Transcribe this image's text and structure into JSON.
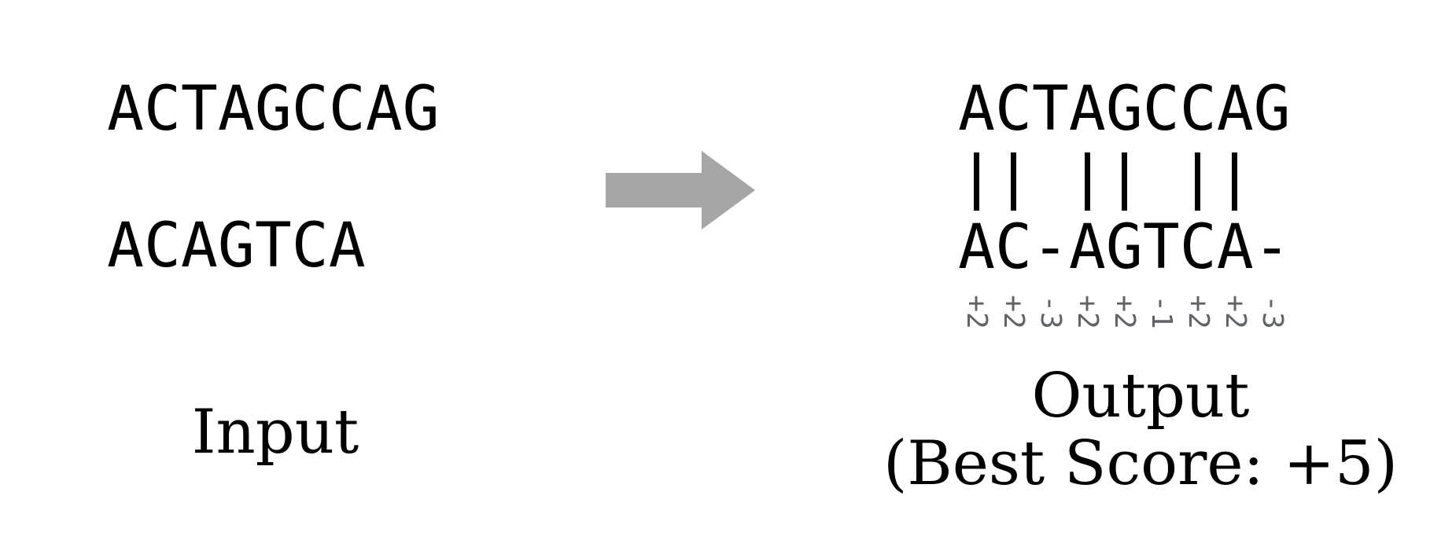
{
  "input": {
    "sequence_1": "ACTAGCCAG",
    "sequence_2": "ACAGTCA",
    "caption": "Input"
  },
  "arrow": {
    "icon": "right-arrow-icon",
    "color": "#a6a6a6"
  },
  "output": {
    "aligned_top": "ACTAGCCAG",
    "match_bars": [
      true,
      true,
      false,
      true,
      true,
      false,
      true,
      true,
      false
    ],
    "aligned_bottom": "AC-AGTCA-",
    "scores": [
      "+2",
      "+2",
      "-3",
      "+2",
      "+2",
      "-1",
      "+2",
      "+2",
      "-3"
    ],
    "caption_line_1": "Output",
    "caption_line_2": "(Best Score: +5)"
  },
  "colors": {
    "score_text": "#5f6368",
    "sequence_text": "#000000"
  }
}
